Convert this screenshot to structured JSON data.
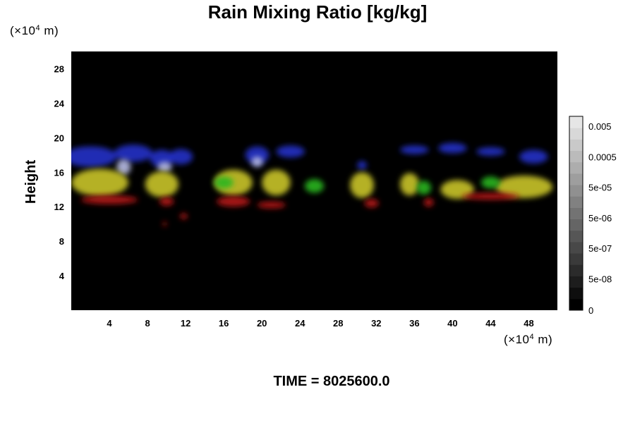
{
  "chart_data": {
    "type": "heatmap",
    "title": "Rain Mixing Ratio [kg/kg]",
    "ylabel": "Height",
    "x_unit_prefix": "(×10",
    "x_unit_exp": "4",
    "x_unit_suffix": " m)",
    "y_unit_prefix": "(×10",
    "y_unit_exp": "4",
    "y_unit_suffix": " m)",
    "x_ticks": [
      "4",
      "8",
      "12",
      "16",
      "20",
      "24",
      "28",
      "32",
      "36",
      "40",
      "44",
      "48"
    ],
    "x_tick_values": [
      4,
      8,
      12,
      16,
      20,
      24,
      28,
      32,
      36,
      40,
      44,
      48
    ],
    "y_ticks": [
      "4",
      "8",
      "12",
      "16",
      "20",
      "24",
      "28"
    ],
    "y_tick_values": [
      4,
      8,
      12,
      16,
      20,
      24,
      28
    ],
    "xlim": [
      0,
      51
    ],
    "ylim": [
      0,
      30
    ],
    "background_color": "#000000",
    "colorbar": {
      "labels": [
        "0.005",
        "0.0005",
        "5e-05",
        "5e-06",
        "5e-07",
        "5e-08",
        "0"
      ],
      "levels": 17,
      "min_color": "#000000",
      "max_color": "#e6e6e6"
    },
    "layers": [
      {
        "name": "blue",
        "color": "#2430c8",
        "height_range": [
          16.5,
          19.5
        ],
        "blobs": [
          [
            2,
            5.5,
            17.8,
            1.2
          ],
          [
            6.5,
            4,
            18.2,
            1.0
          ],
          [
            9.5,
            2.5,
            17.6,
            1.0
          ],
          [
            11.5,
            2.5,
            17.8,
            0.9
          ],
          [
            19.5,
            2.5,
            18.0,
            1.0
          ],
          [
            23,
            3,
            18.4,
            0.7
          ],
          [
            30.5,
            1,
            16.8,
            0.5
          ],
          [
            36,
            3,
            18.6,
            0.5
          ],
          [
            40,
            3,
            18.8,
            0.6
          ],
          [
            44,
            3,
            18.4,
            0.5
          ],
          [
            48.5,
            3,
            17.8,
            0.8
          ]
        ]
      },
      {
        "name": "white-blue",
        "color": "#b8bce6",
        "height_range": [
          16.0,
          18.0
        ],
        "blobs": [
          [
            5.5,
            1.5,
            16.6,
            0.9
          ],
          [
            9.8,
            1.5,
            16.6,
            0.6
          ],
          [
            19.5,
            1.2,
            17.2,
            0.6
          ]
        ]
      },
      {
        "name": "yellow",
        "color": "#c9c42a",
        "height_range": [
          13.0,
          16.5
        ],
        "blobs": [
          [
            3,
            6,
            14.8,
            1.6
          ],
          [
            9.5,
            3.5,
            14.6,
            1.5
          ],
          [
            17,
            4,
            14.8,
            1.5
          ],
          [
            21.5,
            3,
            14.8,
            1.5
          ],
          [
            30.5,
            2.5,
            14.5,
            1.5
          ],
          [
            35.5,
            2,
            14.6,
            1.3
          ],
          [
            40.5,
            3.5,
            14.0,
            1.1
          ],
          [
            47.5,
            6,
            14.3,
            1.3
          ]
        ]
      },
      {
        "name": "green",
        "color": "#27b61e",
        "height_range": [
          13.0,
          15.5
        ],
        "blobs": [
          [
            25.5,
            2,
            14.4,
            0.8
          ],
          [
            16,
            2,
            14.8,
            0.7
          ],
          [
            37,
            1.5,
            14.2,
            0.8
          ],
          [
            44,
            2,
            14.8,
            0.7
          ]
        ]
      },
      {
        "name": "red",
        "color": "#b81a14",
        "height_range": [
          9.5,
          13.5
        ],
        "blobs": [
          [
            4,
            6,
            12.8,
            0.5
          ],
          [
            10,
            1.5,
            12.6,
            0.5
          ],
          [
            17,
            3.5,
            12.6,
            0.6
          ],
          [
            21,
            3,
            12.2,
            0.4
          ],
          [
            31.5,
            1.5,
            12.4,
            0.5
          ],
          [
            37.5,
            1,
            12.5,
            0.5
          ],
          [
            44,
            6,
            13.2,
            0.4
          ],
          [
            9.8,
            0.4,
            10.0,
            0.3
          ],
          [
            11.8,
            0.8,
            10.9,
            0.35
          ]
        ]
      }
    ]
  },
  "time_label": "TIME = 8025600.0"
}
